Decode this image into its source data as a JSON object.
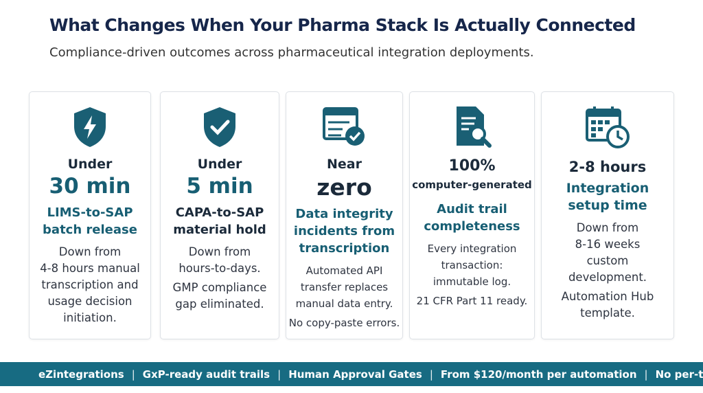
{
  "header": {
    "title": "What Changes When Your Pharma Stack Is Actually Connected",
    "subtitle": "Compliance-driven outcomes across pharmaceutical integration deployments."
  },
  "cards": [
    {
      "headline": [
        "Under",
        "30 min"
      ],
      "label": [
        "LIMS-to-SAP",
        "batch release"
      ],
      "description": [
        [
          "Down from",
          "4-8 hours manual",
          "transcription and",
          "usage decision",
          "initiation."
        ]
      ]
    },
    {
      "headline": [
        "Under",
        "5 min"
      ],
      "label": [
        "CAPA-to-SAP",
        "material hold"
      ],
      "description": [
        [
          "Down from",
          "hours-to-days."
        ],
        [
          "GMP compliance",
          "gap eliminated."
        ]
      ]
    },
    {
      "headline": [
        "Near",
        "zero"
      ],
      "label": [
        "Data integrity",
        "incidents from",
        "transcription"
      ],
      "description": [
        [
          "Automated API",
          "transfer replaces",
          "manual data entry."
        ],
        [
          "No copy-paste errors."
        ]
      ]
    },
    {
      "headline": [
        "100%",
        "computer-generated"
      ],
      "label": [
        "Audit trail",
        "completeness"
      ],
      "description": [
        [
          "Every integration",
          "transaction:",
          "immutable log."
        ],
        [
          "21 CFR Part 11 ready."
        ]
      ]
    },
    {
      "headline": [
        "2-8 hours"
      ],
      "label": [
        "Integration",
        "setup time"
      ],
      "description": [
        [
          "Down from",
          "8-16 weeks",
          "custom",
          "development."
        ],
        [
          "Automation Hub",
          "template."
        ]
      ]
    }
  ],
  "footer": [
    "eZintegrations",
    "GxP-ready audit trails",
    "Human Approval Gates",
    "From $120/month per automation",
    "No per-transaction"
  ]
}
